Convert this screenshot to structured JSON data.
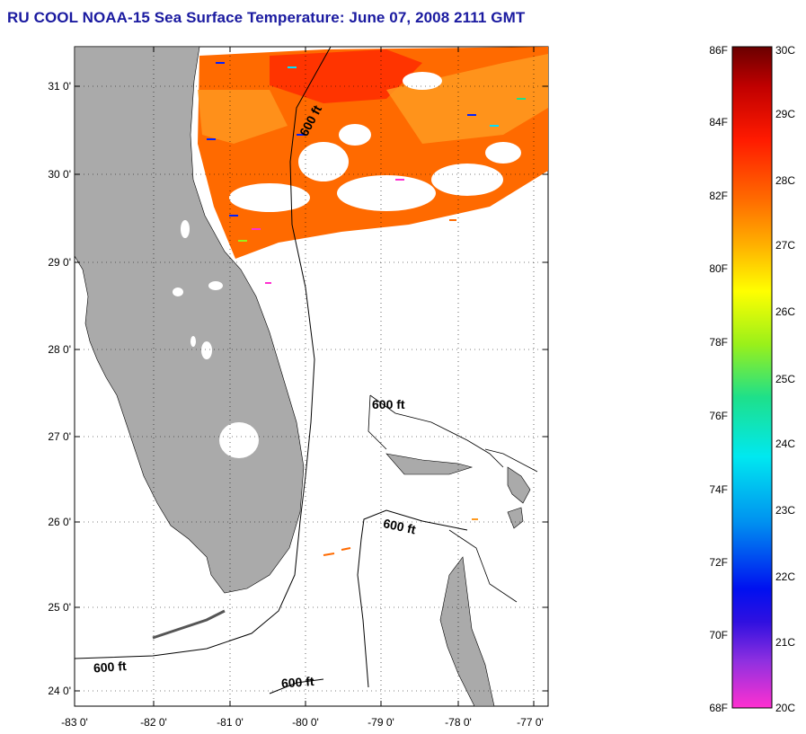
{
  "title": "RU COOL  NOAA-15  Sea Surface Temperature:  June 07, 2008 2111 GMT",
  "map": {
    "lat_ticks": [
      "31 0'",
      "30 0'",
      "29 0'",
      "28 0'",
      "27 0'",
      "26 0'",
      "25 0'",
      "24 0'"
    ],
    "lon_ticks": [
      "-83 0'",
      "-82 0'",
      "-81 0'",
      "-80 0'",
      "-79 0'",
      "-78 0'",
      "-77 0'"
    ],
    "contour_labels": [
      "600 ft",
      "600 ft",
      "600 ft",
      "600 ft",
      "600 ft"
    ]
  },
  "colorbar": {
    "f_labels": [
      "86F",
      "84F",
      "82F",
      "80F",
      "78F",
      "76F",
      "74F",
      "72F",
      "70F",
      "68F"
    ],
    "c_labels": [
      "30C",
      "29C",
      "28C",
      "27C",
      "26C",
      "25C",
      "24C",
      "23C",
      "22C",
      "21C",
      "20C"
    ]
  },
  "colors": {
    "title": "#1a1aa0",
    "land": "#aaaaaa",
    "sst_warm": "#ff6a00",
    "sst_hot": "#ff2a00"
  }
}
